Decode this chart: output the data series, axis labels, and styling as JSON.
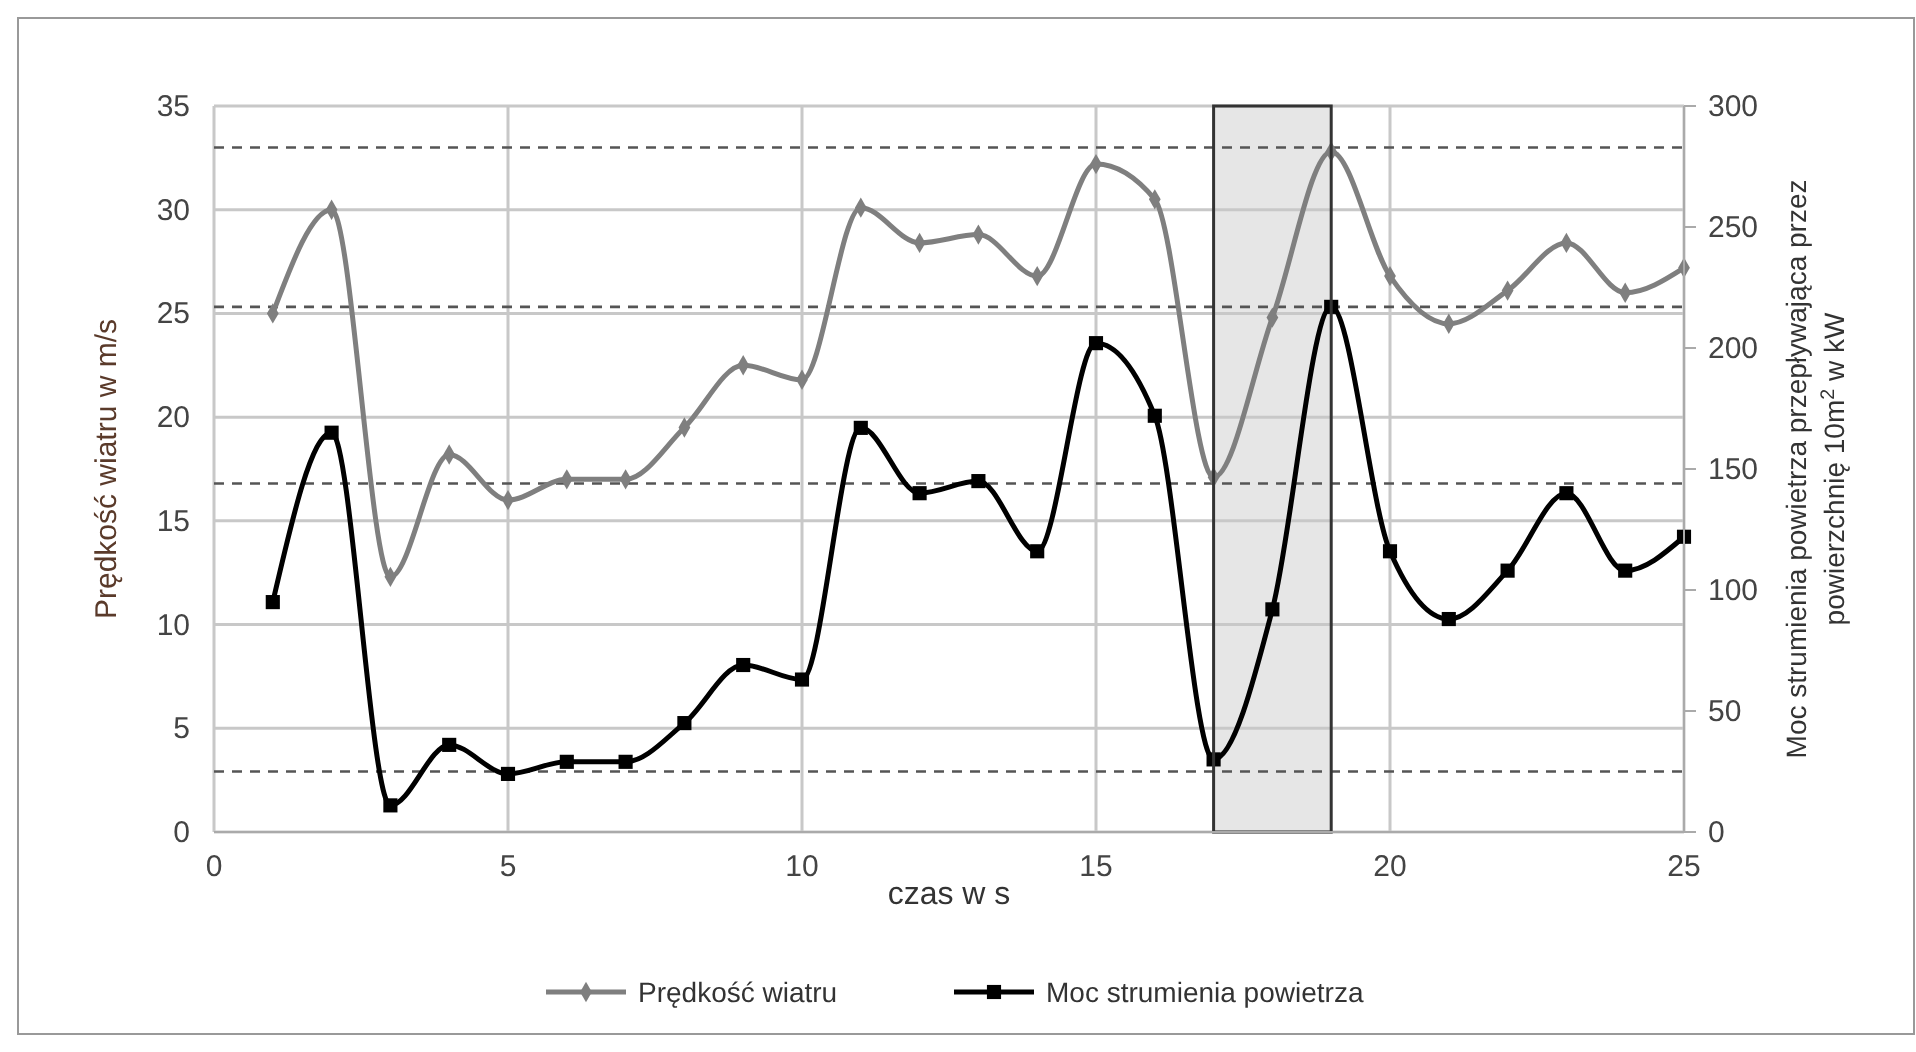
{
  "chart_data": {
    "type": "line",
    "xlabel": "czas w s",
    "ylabel": "Prędkość wiatru w m/s",
    "y2label": "Moc strumienia powietrza przepływająca przez powierzchnię 10m$^{2}$ w kW",
    "x": [
      1,
      2,
      3,
      4,
      5,
      6,
      7,
      8,
      9,
      10,
      11,
      12,
      13,
      14,
      15,
      16,
      17,
      18,
      19,
      20,
      21,
      22,
      23,
      24,
      25
    ],
    "series": [
      {
        "name": "Prędkość wiatru",
        "color": "#7f7f7f",
        "marker": "diamond",
        "values": [
          25,
          30,
          12.3,
          18.2,
          16,
          17,
          17,
          19.5,
          22.5,
          21.8,
          30.1,
          28.4,
          28.8,
          26.8,
          32.2,
          30.5,
          17.1,
          24.8,
          32.8,
          26.8,
          24.5,
          26.1,
          28.4,
          26,
          27.2
        ]
      },
      {
        "name": "Moc strumienia powietrza",
        "color": "#000000",
        "marker": "square",
        "axis": "y2",
        "values": [
          95,
          165,
          11,
          36,
          24,
          29,
          29,
          45,
          69,
          63,
          167,
          140,
          145,
          116,
          202,
          172,
          30,
          92,
          217,
          116,
          88,
          108,
          140,
          108,
          122
        ]
      }
    ],
    "xlim": [
      0,
      25
    ],
    "xticks": [
      0,
      5,
      10,
      15,
      20,
      25
    ],
    "ylim": [
      0,
      35
    ],
    "yticks": [
      0,
      5,
      10,
      15,
      20,
      25,
      30,
      35
    ],
    "y2lim": [
      0,
      300
    ],
    "y2ticks": [
      0,
      50,
      100,
      150,
      200,
      250,
      300
    ],
    "ref_lines": [
      {
        "axis": "y",
        "value": 33,
        "line_style": "dashed",
        "color": "#555555"
      },
      {
        "axis": "y",
        "value": 16.8,
        "line_style": "dashed",
        "color": "#555555"
      },
      {
        "axis": "y2",
        "value": 217,
        "line_style": "dashed",
        "color": "#555555"
      },
      {
        "axis": "y2",
        "value": 25,
        "line_style": "dashed",
        "color": "#555555"
      }
    ],
    "bands": [
      {
        "axis": "x",
        "from": 17,
        "to": 19,
        "color": "#e6e6e6"
      }
    ],
    "grid": true,
    "legend": "bottom",
    "line_style": "solid"
  }
}
